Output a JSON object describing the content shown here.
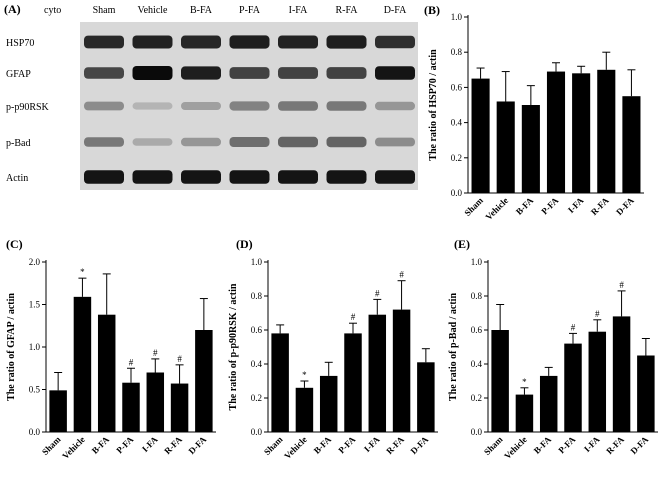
{
  "blot": {
    "panel_label": "(A)",
    "fraction_label": "cyto",
    "lanes": [
      "Sham",
      "Vehicle",
      "B-FA",
      "P-FA",
      "I-FA",
      "R-FA",
      "D-FA"
    ],
    "rows": [
      {
        "label": "HSP70",
        "intensity": [
          0.85,
          0.88,
          0.86,
          0.9,
          0.88,
          0.9,
          0.82
        ]
      },
      {
        "label": "GFAP",
        "intensity": [
          0.7,
          1.0,
          0.9,
          0.72,
          0.72,
          0.72,
          0.95
        ]
      },
      {
        "label": "p-p90RSK",
        "intensity": [
          0.35,
          0.15,
          0.25,
          0.4,
          0.45,
          0.45,
          0.3
        ]
      },
      {
        "label": "p-Bad",
        "intensity": [
          0.45,
          0.2,
          0.3,
          0.5,
          0.55,
          0.55,
          0.35
        ]
      },
      {
        "label": "Actin",
        "intensity": [
          0.95,
          0.95,
          0.95,
          0.95,
          0.95,
          0.95,
          0.95
        ]
      }
    ]
  },
  "chart_data": [
    {
      "panel_label": "(B)",
      "type": "bar",
      "categories": [
        "Sham",
        "Vehicle",
        "B-FA",
        "P-FA",
        "I-FA",
        "R-FA",
        "D-FA"
      ],
      "values": [
        0.65,
        0.52,
        0.5,
        0.69,
        0.68,
        0.7,
        0.55
      ],
      "errors": [
        0.06,
        0.17,
        0.11,
        0.05,
        0.04,
        0.1,
        0.15
      ],
      "annotations": [
        "",
        "",
        "",
        "",
        "",
        "",
        ""
      ],
      "ylabel": "The ratio of HSP70 / actin",
      "ylim": [
        0.0,
        1.0
      ],
      "yticks": [
        0.0,
        0.2,
        0.4,
        0.6,
        0.8,
        1.0
      ],
      "ytick_labels": [
        "0.0",
        "0.2",
        "0.4",
        "0.6",
        "0.8",
        "1.0"
      ]
    },
    {
      "panel_label": "(C)",
      "type": "bar",
      "categories": [
        "Sham",
        "Vehicle",
        "B-FA",
        "P-FA",
        "I-FA",
        "R-FA",
        "D-FA"
      ],
      "values": [
        0.49,
        1.59,
        1.38,
        0.58,
        0.7,
        0.57,
        1.2
      ],
      "errors": [
        0.21,
        0.22,
        0.48,
        0.17,
        0.16,
        0.22,
        0.37
      ],
      "annotations": [
        "",
        "*",
        "",
        "#",
        "#",
        "#",
        ""
      ],
      "ylabel": "The ratio of GFAP / actin",
      "ylim": [
        0.0,
        2.0
      ],
      "yticks": [
        0.0,
        0.5,
        1.0,
        1.5,
        2.0
      ],
      "ytick_labels": [
        "0.0",
        "0.5",
        "1.0",
        "1.5",
        "2.0"
      ]
    },
    {
      "panel_label": "(D)",
      "type": "bar",
      "categories": [
        "Sham",
        "Vehicle",
        "B-FA",
        "P-FA",
        "I-FA",
        "R-FA",
        "D-FA"
      ],
      "values": [
        0.58,
        0.26,
        0.33,
        0.58,
        0.69,
        0.72,
        0.41
      ],
      "errors": [
        0.05,
        0.04,
        0.08,
        0.06,
        0.09,
        0.17,
        0.08
      ],
      "annotations": [
        "",
        "*",
        "",
        "#",
        "#",
        "#",
        ""
      ],
      "ylabel": "The ratio of p-p90RSK / actin",
      "ylim": [
        0.0,
        1.0
      ],
      "yticks": [
        0.0,
        0.2,
        0.4,
        0.6,
        0.8,
        1.0
      ],
      "ytick_labels": [
        "0.0",
        "0.2",
        "0.4",
        "0.6",
        "0.8",
        "1.0"
      ]
    },
    {
      "panel_label": "(E)",
      "type": "bar",
      "categories": [
        "Sham",
        "Vehicle",
        "B-FA",
        "P-FA",
        "I-FA",
        "R-FA",
        "D-FA"
      ],
      "values": [
        0.6,
        0.22,
        0.33,
        0.52,
        0.59,
        0.68,
        0.45
      ],
      "errors": [
        0.15,
        0.04,
        0.05,
        0.06,
        0.07,
        0.15,
        0.1
      ],
      "annotations": [
        "",
        "*",
        "",
        "#",
        "#",
        "#",
        ""
      ],
      "ylabel": "The ratio of p-Bad / actin",
      "ylim": [
        0.0,
        1.0
      ],
      "yticks": [
        0.0,
        0.2,
        0.4,
        0.6,
        0.8,
        1.0
      ],
      "ytick_labels": [
        "0.0",
        "0.2",
        "0.4",
        "0.6",
        "0.8",
        "1.0"
      ]
    }
  ]
}
